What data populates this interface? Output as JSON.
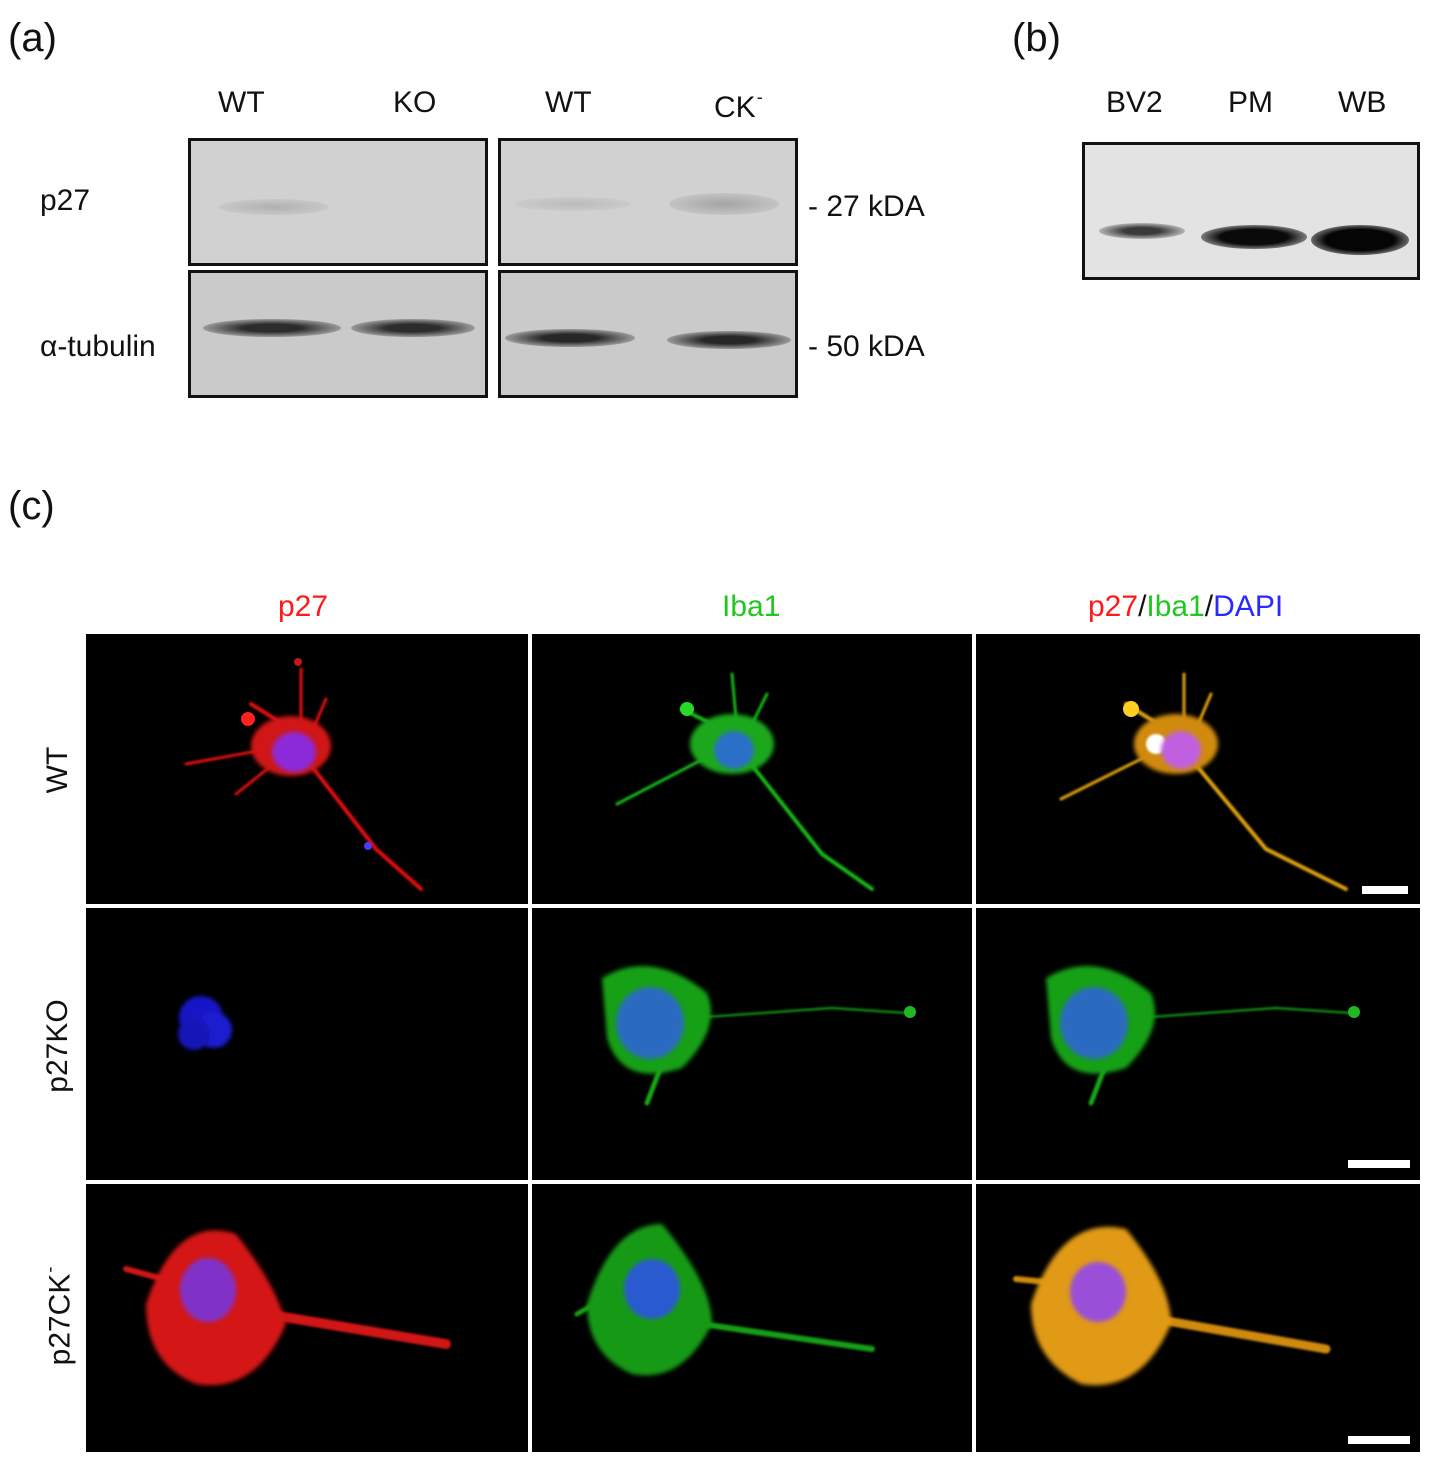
{
  "panel_a": {
    "label": "(a)",
    "lanes_left": [
      "WT",
      "KO"
    ],
    "lanes_right": [
      "WT",
      "CK"
    ],
    "lane_right_sup": "-",
    "rows": [
      "p27",
      "α-tubulin"
    ],
    "markers": [
      "- 27 kDA",
      "- 50 kDA"
    ]
  },
  "panel_b": {
    "label": "(b)",
    "lanes": [
      "BV2",
      "PM",
      "WB"
    ]
  },
  "panel_c": {
    "label": "(c)",
    "columns": {
      "p27": "p27",
      "iba1": "Iba1",
      "merge_p27": "p27",
      "merge_sep1": "/",
      "merge_iba1": "Iba1",
      "merge_sep2": "/",
      "merge_dapi": "DAPI"
    },
    "rows": {
      "wt": "WT",
      "ko": "p27KO",
      "ck": "p27CK",
      "ck_sup": "-"
    },
    "colors": {
      "p27": "#ff1a1a",
      "iba1": "#1ec81e",
      "dapi": "#2a2aff",
      "merge": "#ffb800"
    }
  }
}
